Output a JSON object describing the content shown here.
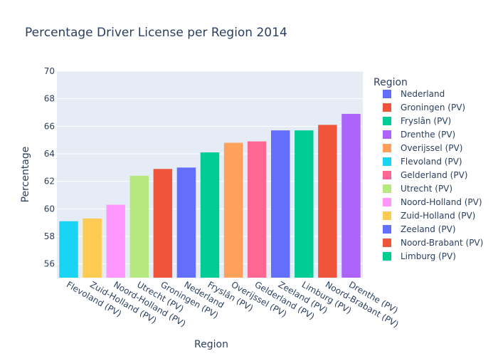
{
  "chart_data": {
    "type": "bar",
    "title": "Percentage Driver License per Region 2014",
    "xlabel": "Region",
    "ylabel": "Percentage",
    "ylim": [
      55,
      70
    ],
    "yticks": [
      56,
      58,
      60,
      62,
      64,
      66,
      68,
      70
    ],
    "grid": true,
    "legend": {
      "title": "Region",
      "placement": "right"
    },
    "bars": [
      {
        "category": "Flevoland (PV)",
        "value": 59.1,
        "color": "#19d3f3"
      },
      {
        "category": "Zuid-Holland (PV)",
        "value": 59.3,
        "color": "#fecb52"
      },
      {
        "category": "Noord-Holland (PV)",
        "value": 60.3,
        "color": "#ff97ff"
      },
      {
        "category": "Utrecht (PV)",
        "value": 62.4,
        "color": "#b6e880"
      },
      {
        "category": "Groningen (PV)",
        "value": 62.9,
        "color": "#ef553b"
      },
      {
        "category": "Nederland",
        "value": 63.0,
        "color": "#636efa"
      },
      {
        "category": "Fryslân (PV)",
        "value": 64.1,
        "color": "#00cc96"
      },
      {
        "category": "Overijssel (PV)",
        "value": 64.8,
        "color": "#ffa15a"
      },
      {
        "category": "Gelderland (PV)",
        "value": 64.9,
        "color": "#ff6692"
      },
      {
        "category": "Zeeland (PV)",
        "value": 65.7,
        "color": "#636efa"
      },
      {
        "category": "Limburg (PV)",
        "value": 65.7,
        "color": "#00cc96"
      },
      {
        "category": "Noord-Brabant (PV)",
        "value": 66.1,
        "color": "#ef553b"
      },
      {
        "category": "Drenthe (PV)",
        "value": 66.9,
        "color": "#ab63fa"
      }
    ],
    "legend_items": [
      {
        "name": "Nederland",
        "color": "#636efa"
      },
      {
        "name": "Groningen (PV)",
        "color": "#ef553b"
      },
      {
        "name": "Fryslân (PV)",
        "color": "#00cc96"
      },
      {
        "name": "Drenthe (PV)",
        "color": "#ab63fa"
      },
      {
        "name": "Overijssel (PV)",
        "color": "#ffa15a"
      },
      {
        "name": "Flevoland (PV)",
        "color": "#19d3f3"
      },
      {
        "name": "Gelderland (PV)",
        "color": "#ff6692"
      },
      {
        "name": "Utrecht (PV)",
        "color": "#b6e880"
      },
      {
        "name": "Noord-Holland (PV)",
        "color": "#ff97ff"
      },
      {
        "name": "Zuid-Holland (PV)",
        "color": "#fecb52"
      },
      {
        "name": "Zeeland (PV)",
        "color": "#636efa"
      },
      {
        "name": "Noord-Brabant (PV)",
        "color": "#ef553b"
      },
      {
        "name": "Limburg (PV)",
        "color": "#00cc96"
      }
    ],
    "plot_bg": "#e5ecf6",
    "grid_color": "#ffffff"
  }
}
